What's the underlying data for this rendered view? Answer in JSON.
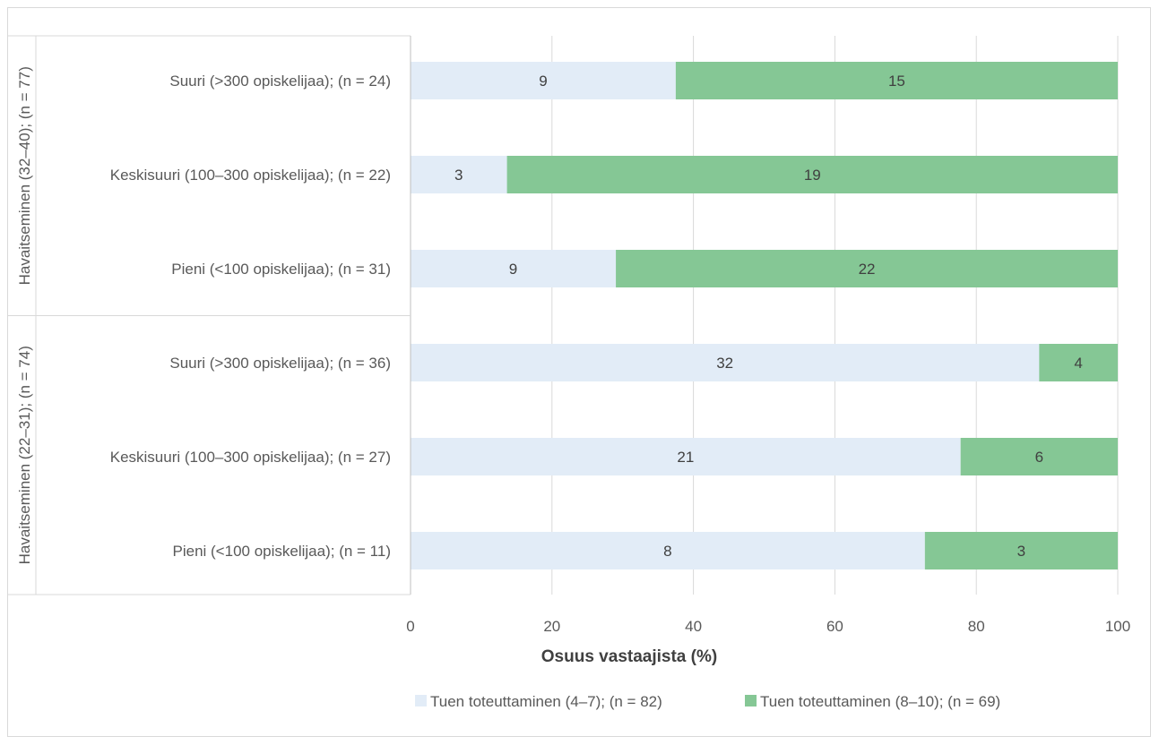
{
  "chart_data": {
    "type": "bar",
    "orientation": "horizontal",
    "stacked": "percent",
    "groups": [
      {
        "label": "Havaitseminen (32–40); (n = 77)",
        "rows": [
          {
            "label": "Suuri (>300 opiskelijaa); (n = 24)",
            "values": [
              9,
              15
            ]
          },
          {
            "label": "Keskisuuri (100–300 opiskelijaa); (n = 22)",
            "values": [
              3,
              19
            ]
          },
          {
            "label": "Pieni (<100 opiskelijaa); (n = 31)",
            "values": [
              9,
              22
            ]
          }
        ]
      },
      {
        "label": "Havaitseminen (22–31); (n = 74)",
        "rows": [
          {
            "label": "Suuri (>300 opiskelijaa); (n = 36)",
            "values": [
              32,
              4
            ]
          },
          {
            "label": "Keskisuuri (100–300 opiskelijaa); (n = 27)",
            "values": [
              21,
              6
            ]
          },
          {
            "label": "Pieni (<100 opiskelijaa); (n = 11)",
            "values": [
              8,
              3
            ]
          }
        ]
      }
    ],
    "series": [
      {
        "name": "Tuen toteuttaminen (4–7); (n = 82)",
        "color": "#e2ecf7"
      },
      {
        "name": "Tuen toteuttaminen (8–10); (n = 69)",
        "color": "#85c795"
      }
    ],
    "xlabel": "Osuus vastaajista (%)",
    "xlim": [
      0,
      100
    ],
    "xticks": [
      0,
      20,
      40,
      60,
      80,
      100
    ],
    "grid": true,
    "legend_position": "bottom"
  }
}
